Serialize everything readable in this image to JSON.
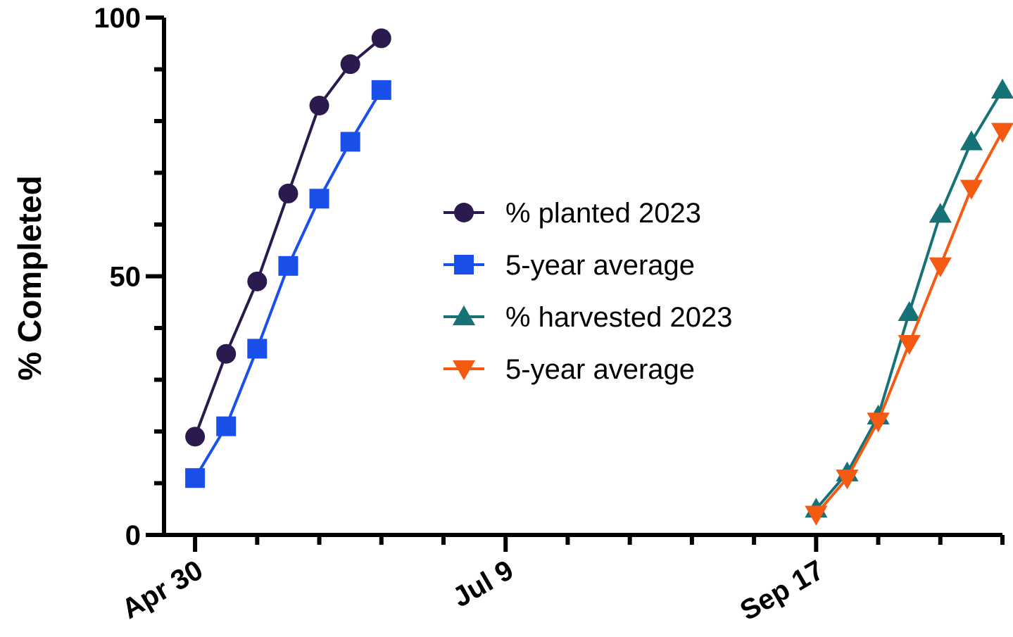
{
  "chart_data": {
    "type": "line",
    "ylabel": "% Completed",
    "xlabel": "",
    "x_axis": {
      "kind": "date",
      "year": 2023,
      "range": [
        "2023-04-23",
        "2023-10-29"
      ],
      "major_ticks": [
        "2023-04-30",
        "2023-07-09",
        "2023-09-17"
      ],
      "tick_labels": [
        "Apr 30",
        "Jul 9",
        "Sep 17"
      ],
      "minor_ticks": [
        "2023-05-14",
        "2023-05-28",
        "2023-06-11",
        "2023-06-25",
        "2023-07-23",
        "2023-08-06",
        "2023-08-20",
        "2023-09-03",
        "2023-10-01",
        "2023-10-15",
        "2023-10-29"
      ]
    },
    "y_axis": {
      "range": [
        0,
        100
      ],
      "ticks": [
        0,
        50,
        100
      ],
      "tick_labels": [
        "0",
        "50",
        "100"
      ],
      "minor_ticks": [
        10,
        20,
        30,
        40,
        60,
        70,
        80,
        90
      ]
    },
    "grid": false,
    "legend_position": "center",
    "series": [
      {
        "name": "% planted 2023",
        "color": "#2a1a4e",
        "marker": "circle",
        "x": [
          "2023-04-30",
          "2023-05-07",
          "2023-05-14",
          "2023-05-21",
          "2023-05-28",
          "2023-06-04",
          "2023-06-11"
        ],
        "y": [
          19,
          35,
          49,
          66,
          83,
          91,
          96
        ]
      },
      {
        "name": "5-year average",
        "color": "#1a4fea",
        "marker": "square",
        "x": [
          "2023-04-30",
          "2023-05-07",
          "2023-05-14",
          "2023-05-21",
          "2023-05-28",
          "2023-06-04",
          "2023-06-11"
        ],
        "y": [
          11,
          21,
          36,
          52,
          65,
          76,
          86
        ]
      },
      {
        "name": "% harvested 2023",
        "color": "#167277",
        "marker": "triangle-up",
        "x": [
          "2023-09-17",
          "2023-09-24",
          "2023-10-01",
          "2023-10-08",
          "2023-10-15",
          "2023-10-22",
          "2023-10-29"
        ],
        "y": [
          5,
          12,
          23,
          43,
          62,
          76,
          86
        ]
      },
      {
        "name": "5-year average",
        "color": "#f45a12",
        "marker": "triangle-down",
        "x": [
          "2023-09-17",
          "2023-09-24",
          "2023-10-01",
          "2023-10-08",
          "2023-10-15",
          "2023-10-22",
          "2023-10-29"
        ],
        "y": [
          4,
          11,
          22,
          37,
          52,
          67,
          78
        ]
      }
    ]
  }
}
